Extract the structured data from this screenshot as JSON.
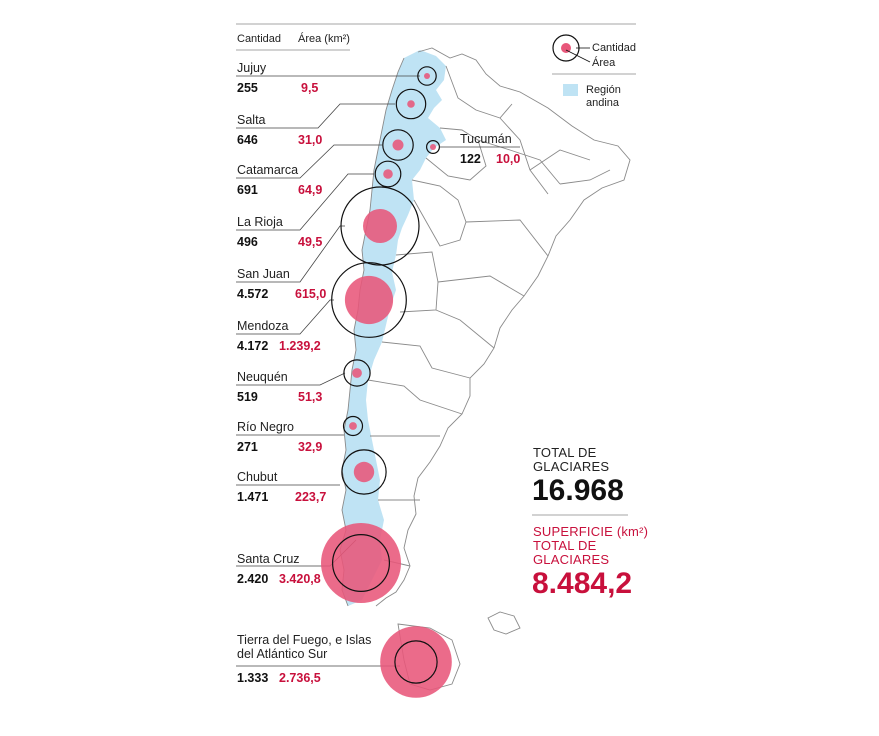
{
  "header": {
    "col_count": "Cantidad",
    "col_area": "Área (km²)"
  },
  "legend": {
    "count_label": "Cantidad",
    "area_label": "Área",
    "region_label_1": "Región",
    "region_label_2": "andina"
  },
  "colors": {
    "area": "#e8577a",
    "area_text": "#c8103c",
    "region": "#bfe3f4",
    "count_ring": "#111111",
    "map_line": "#8a8a8a"
  },
  "totals": {
    "glaciers_label_1": "TOTAL DE",
    "glaciers_label_2": "GLACIARES",
    "glaciers_value": "16.968",
    "area_label_1": "SUPERFICIE (km²)",
    "area_label_2": "TOTAL DE",
    "area_label_3": "GLACIARES",
    "area_value": "8.484,2"
  },
  "chart_data": {
    "type": "bubble-map",
    "title": "",
    "columns": [
      "Cantidad",
      "Área (km²)"
    ],
    "provinces": [
      {
        "name": "Jujuy",
        "count": 255,
        "area": 9.5,
        "count_label": "255",
        "area_label": "9,5"
      },
      {
        "name": "Salta",
        "count": 646,
        "area": 31.0,
        "count_label": "646",
        "area_label": "31,0"
      },
      {
        "name": "Tucumán",
        "count": 122,
        "area": 10.0,
        "count_label": "122",
        "area_label": "10,0"
      },
      {
        "name": "Catamarca",
        "count": 691,
        "area": 64.9,
        "count_label": "691",
        "area_label": "64,9"
      },
      {
        "name": "La Rioja",
        "count": 496,
        "area": 49.5,
        "count_label": "496",
        "area_label": "49,5"
      },
      {
        "name": "San Juan",
        "count": 4572,
        "area": 615.0,
        "count_label": "4.572",
        "area_label": "615,0"
      },
      {
        "name": "Mendoza",
        "count": 4172,
        "area": 1239.2,
        "count_label": "4.172",
        "area_label": "1.239,2"
      },
      {
        "name": "Neuquén",
        "count": 519,
        "area": 51.3,
        "count_label": "519",
        "area_label": "51,3"
      },
      {
        "name": "Río Negro",
        "count": 271,
        "area": 32.9,
        "count_label": "271",
        "area_label": "32,9"
      },
      {
        "name": "Chubut",
        "count": 1471,
        "area": 223.7,
        "count_label": "1.471",
        "area_label": "223,7"
      },
      {
        "name": "Santa Cruz",
        "count": 2420,
        "area": 3420.8,
        "count_label": "2.420",
        "area_label": "3.420,8"
      },
      {
        "name": "Tierra del Fuego, e Islas del Atlántico Sur",
        "name_line1": "Tierra del Fuego, e Islas",
        "name_line2": "del Atlántico Sur",
        "count": 1333,
        "area": 2736.5,
        "count_label": "1.333",
        "area_label": "2.736,5"
      }
    ],
    "total_count": 16968,
    "total_area": 8484.2
  }
}
